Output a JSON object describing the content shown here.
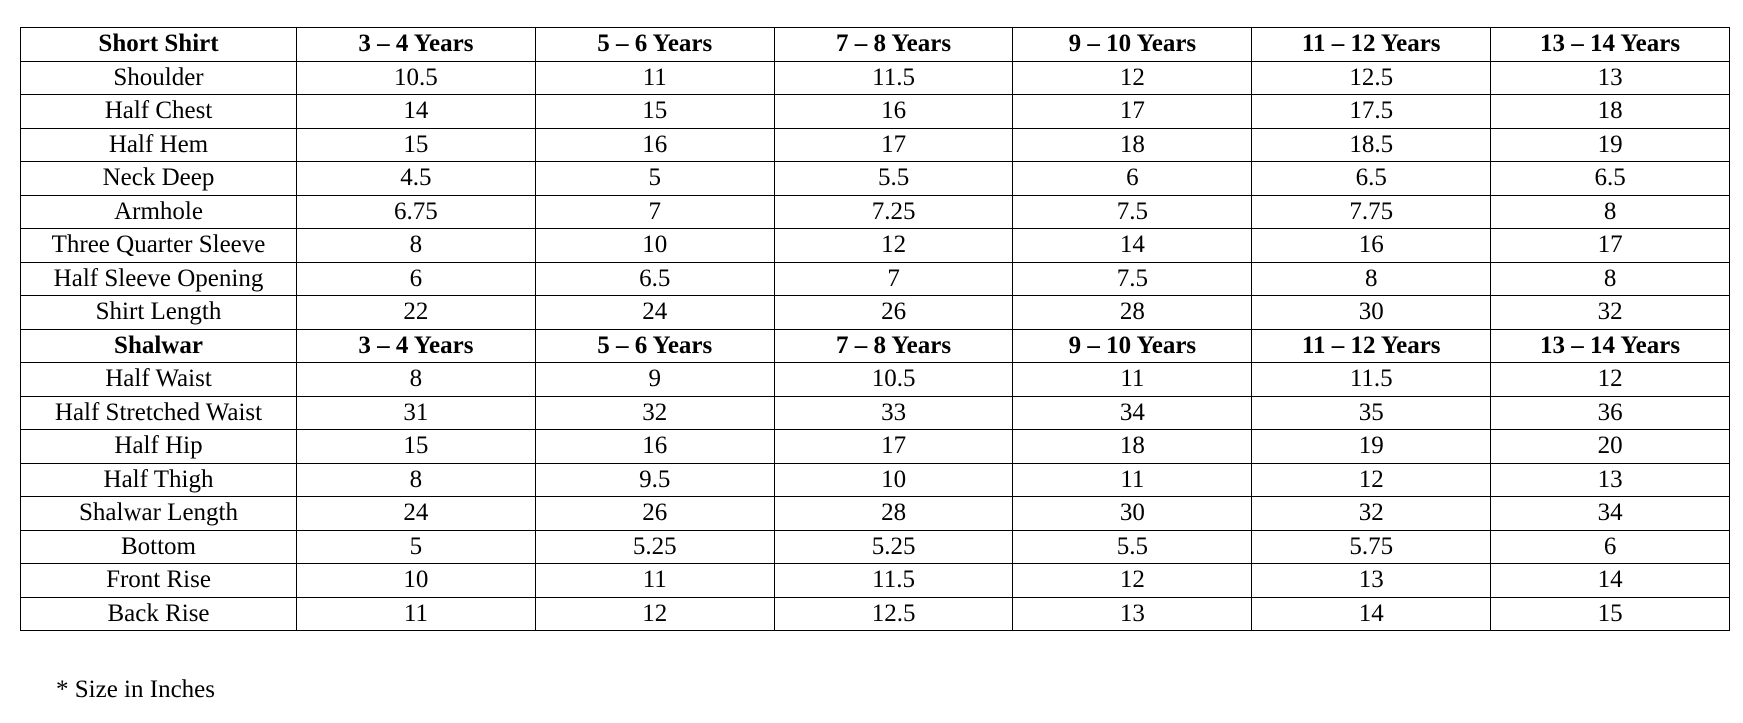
{
  "sections": [
    {
      "header": [
        "Short Shirt",
        "3 – 4 Years",
        "5 – 6 Years",
        "7 – 8 Years",
        "9 – 10 Years",
        "11 – 12 Years",
        "13 – 14 Years"
      ],
      "rows": [
        [
          "Shoulder",
          10.5,
          11,
          11.5,
          12,
          12.5,
          13
        ],
        [
          "Half Chest",
          14,
          15,
          16,
          17,
          17.5,
          18
        ],
        [
          "Half Hem",
          15,
          16,
          17,
          18,
          18.5,
          19
        ],
        [
          "Neck Deep",
          4.5,
          5,
          5.5,
          6,
          6.5,
          6.5
        ],
        [
          "Armhole",
          6.75,
          7,
          7.25,
          7.5,
          7.75,
          8
        ],
        [
          "Three Quarter Sleeve",
          8,
          10,
          12,
          14,
          16,
          17
        ],
        [
          "Half Sleeve Opening",
          6,
          6.5,
          7,
          7.5,
          8,
          8
        ],
        [
          "Shirt Length",
          22,
          24,
          26,
          28,
          30,
          32
        ]
      ]
    },
    {
      "header": [
        "Shalwar",
        "3 – 4 Years",
        "5 – 6 Years",
        "7 – 8 Years",
        "9 – 10 Years",
        "11 – 12 Years",
        "13 – 14 Years"
      ],
      "rows": [
        [
          "Half Waist",
          8,
          9,
          10.5,
          11,
          11.5,
          12
        ],
        [
          "Half Stretched Waist",
          31,
          32,
          33,
          34,
          35,
          36
        ],
        [
          "Half Hip",
          15,
          16,
          17,
          18,
          19,
          20
        ],
        [
          "Half Thigh",
          8,
          9.5,
          10,
          11,
          12,
          13
        ],
        [
          "Shalwar Length",
          24,
          26,
          28,
          30,
          32,
          34
        ],
        [
          "Bottom",
          5,
          5.25,
          5.25,
          5.5,
          5.75,
          6
        ],
        [
          "Front Rise",
          10,
          11,
          11.5,
          12,
          13,
          14
        ],
        [
          "Back Rise",
          11,
          12,
          12.5,
          13,
          14,
          15
        ]
      ]
    }
  ],
  "note": "* Size in Inches"
}
